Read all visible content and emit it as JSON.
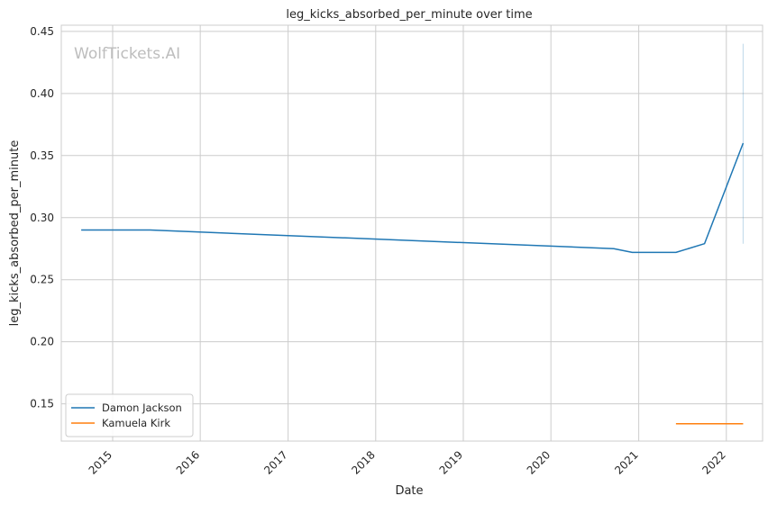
{
  "chart_data": {
    "type": "line",
    "title": "leg_kicks_absorbed_per_minute over time",
    "xlabel": "Date",
    "ylabel": "leg_kicks_absorbed_per_minute",
    "watermark": "WolfTickets.AI",
    "xlim": [
      "2014-06-01",
      "2022-06-01"
    ],
    "ylim": [
      0.12,
      0.455
    ],
    "x_ticks": [
      "2015",
      "2016",
      "2017",
      "2018",
      "2019",
      "2020",
      "2021",
      "2022"
    ],
    "y_ticks": [
      "0.15",
      "0.20",
      "0.25",
      "0.30",
      "0.35",
      "0.40",
      "0.45"
    ],
    "grid": true,
    "legend_position": "lower-left",
    "series": [
      {
        "name": "Damon Jackson",
        "color": "#1f77b4",
        "x": [
          "2014-08-23",
          "2015-06-06",
          "2020-09-19",
          "2020-12-05",
          "2021-06-05",
          "2021-10-02",
          "2022-03-12"
        ],
        "y": [
          0.29,
          0.29,
          0.275,
          0.272,
          0.272,
          0.279,
          0.36
        ],
        "error_band": {
          "x": "2022-03-12",
          "low": 0.279,
          "high": 0.44
        }
      },
      {
        "name": "Kamuela Kirk",
        "color": "#ff7f0e",
        "x": [
          "2021-06-05",
          "2022-03-12"
        ],
        "y": [
          0.134,
          0.134
        ]
      }
    ]
  }
}
